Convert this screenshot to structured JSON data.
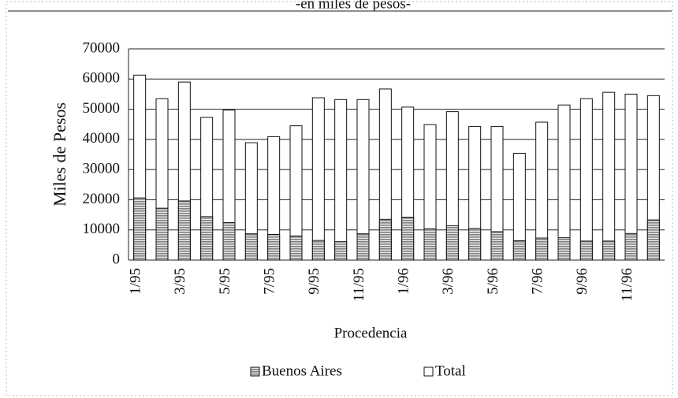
{
  "chart_data": {
    "type": "bar",
    "subtitle": "-en miles de pesos-",
    "xlabel": "Procedencia",
    "ylabel": "Miles de Pesos",
    "categories": [
      "1/95",
      null,
      "3/95",
      null,
      "5/95",
      null,
      "7/95",
      null,
      "9/95",
      null,
      "11/95",
      null,
      "1/96",
      null,
      "3/96",
      null,
      "5/96",
      null,
      "7/96",
      null,
      "9/96",
      null,
      "11/96",
      null
    ],
    "series": [
      {
        "name": "Buenos Aires",
        "color": "#808080",
        "values": [
          20600,
          17200,
          19600,
          14400,
          12400,
          8700,
          8500,
          8000,
          6500,
          6100,
          8700,
          13500,
          14200,
          10400,
          11400,
          10500,
          9400,
          6400,
          7300,
          7400,
          6300,
          6300,
          8800,
          13300
        ]
      },
      {
        "name": "Total",
        "color": "#ffffff",
        "values": [
          61300,
          53500,
          59000,
          47300,
          49700,
          38900,
          40900,
          44500,
          53800,
          53200,
          53200,
          56700,
          50700,
          44900,
          49200,
          44300,
          44300,
          35400,
          45700,
          51400,
          53500,
          55600,
          55000,
          54500
        ]
      }
    ],
    "ylim": [
      0,
      70000
    ],
    "yticks": [
      0,
      10000,
      20000,
      30000,
      40000,
      50000,
      60000,
      70000
    ],
    "grid": true,
    "legend": "bottom"
  }
}
